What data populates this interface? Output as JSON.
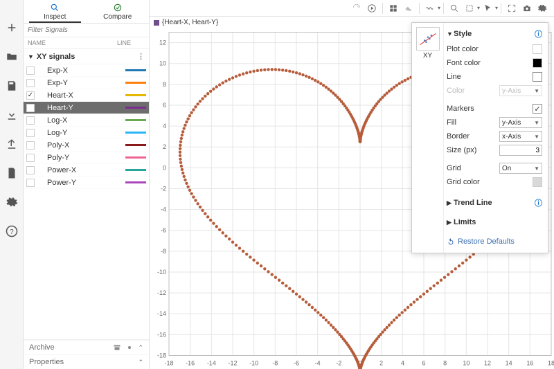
{
  "tabs": {
    "inspect": "Inspect",
    "compare": "Compare",
    "active": "inspect"
  },
  "filter_placeholder": "Filter Signals",
  "columns": {
    "name": "NAME",
    "line": "LINE"
  },
  "group": {
    "label": "XY signals",
    "expanded": true
  },
  "signals": [
    {
      "name": "Exp-X",
      "color": "#1f77b4",
      "checked": false
    },
    {
      "name": "Exp-Y",
      "color": "#ff7f0e",
      "checked": false
    },
    {
      "name": "Heart-X",
      "color": "#e6b800",
      "checked": true
    },
    {
      "name": "Heart-Y",
      "color": "#7b2d8e",
      "checked": true,
      "selected": true
    },
    {
      "name": "Log-X",
      "color": "#6aa84f",
      "checked": false
    },
    {
      "name": "Log-Y",
      "color": "#29b6f6",
      "checked": false
    },
    {
      "name": "Poly-X",
      "color": "#8b1a1a",
      "checked": false
    },
    {
      "name": "Poly-Y",
      "color": "#f06292",
      "checked": false
    },
    {
      "name": "Power-X",
      "color": "#26a69a",
      "checked": false
    },
    {
      "name": "Power-Y",
      "color": "#ab47bc",
      "checked": false
    }
  ],
  "footer": {
    "archive": "Archive",
    "properties": "Properties"
  },
  "plot": {
    "title": "{Heart-X, Heart-Y}",
    "series_color": "#6f4e8c",
    "curve_color": "#b65c3a",
    "marker_size": 3,
    "xlim": [
      -18,
      18
    ],
    "ylim": [
      -18,
      13
    ],
    "xtick_step": 2,
    "ytick_step": 2,
    "background": "#ffffff",
    "grid_color": "#e5e5e5",
    "axis_color": "#bfbfbf"
  },
  "thumb_label": "XY",
  "style_panel": {
    "title": "Style",
    "plot_color_label": "Plot color",
    "plot_color": "#ffffff",
    "font_color_label": "Font color",
    "font_color": "#000000",
    "line_label": "Line",
    "line_checked": false,
    "color_label": "Color",
    "color_value": "y-Axis",
    "markers_label": "Markers",
    "markers_checked": true,
    "fill_label": "Fill",
    "fill_value": "y-Axis",
    "border_label": "Border",
    "border_value": "x-Axis",
    "size_label": "Size (px)",
    "size_value": "3",
    "grid_label": "Grid",
    "grid_value": "On",
    "grid_color_label": "Grid color",
    "grid_color": "#d9d9d9",
    "trend_label": "Trend Line",
    "limits_label": "Limits",
    "restore": "Restore Defaults"
  }
}
